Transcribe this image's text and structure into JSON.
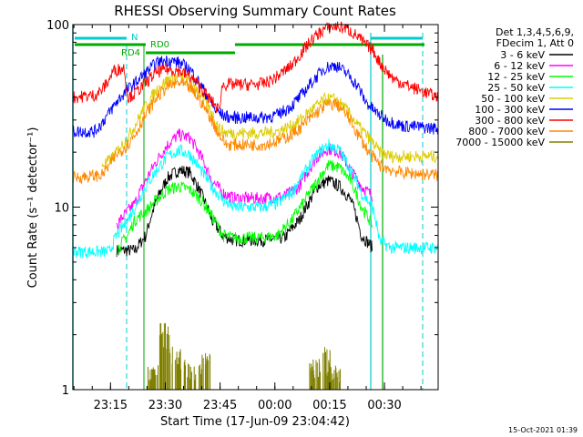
{
  "chart_data": {
    "type": "line",
    "title": "RHESSI Observing Summary Count Rates",
    "xlabel": "Start Time (17-Jun-09 23:04:42)",
    "ylabel": "Count Rate (s⁻¹ detector⁻¹)",
    "yscale": "log",
    "ylim": [
      1,
      100
    ],
    "xlim": [
      0,
      100
    ],
    "x_unit": "minutes after 23:04:42",
    "x_ticks": [
      {
        "t": 10.3,
        "label": "23:15"
      },
      {
        "t": 25.3,
        "label": "23:30"
      },
      {
        "t": 40.3,
        "label": "23:45"
      },
      {
        "t": 55.3,
        "label": "00:00"
      },
      {
        "t": 70.3,
        "label": "00:15"
      },
      {
        "t": 85.3,
        "label": "00:30"
      }
    ],
    "y_ticks": [
      {
        "v": 1,
        "label": "1"
      },
      {
        "v": 10,
        "label": "10"
      },
      {
        "v": 100,
        "label": "100"
      }
    ],
    "legend_header": [
      "Det 1,3,4,5,6,9,",
      "FDecim 1, Att 0"
    ],
    "legend_position": "right",
    "grid": false,
    "series": [
      {
        "name": "3 - 6 keV",
        "color": "#000000",
        "points": [
          [
            12,
            5.8
          ],
          [
            17,
            5.8
          ],
          [
            20,
            7
          ],
          [
            23,
            11
          ],
          [
            26,
            14.5
          ],
          [
            29,
            16
          ],
          [
            32,
            15.5
          ],
          [
            35,
            12
          ],
          [
            38,
            8.5
          ],
          [
            41,
            7
          ],
          [
            44,
            6.6
          ],
          [
            52,
            6.6
          ],
          [
            58,
            6.8
          ],
          [
            62,
            8.5
          ],
          [
            65,
            11
          ],
          [
            67,
            13
          ],
          [
            70,
            14
          ],
          [
            73,
            13
          ],
          [
            76,
            11
          ],
          [
            79,
            7
          ],
          [
            82,
            6
          ]
        ]
      },
      {
        "name": "6 - 12 keV",
        "color": "#ff00ff",
        "points": [
          [
            12,
            8
          ],
          [
            17,
            10.5
          ],
          [
            20,
            14
          ],
          [
            23,
            18
          ],
          [
            26,
            22
          ],
          [
            29,
            25
          ],
          [
            32,
            24
          ],
          [
            35,
            19
          ],
          [
            38,
            14
          ],
          [
            41,
            12
          ],
          [
            44,
            11.2
          ],
          [
            52,
            11.2
          ],
          [
            58,
            11.5
          ],
          [
            62,
            13
          ],
          [
            65,
            16.5
          ],
          [
            67,
            19
          ],
          [
            70,
            21
          ],
          [
            73,
            20
          ],
          [
            76,
            16
          ],
          [
            79,
            13
          ],
          [
            82,
            11.5
          ]
        ]
      },
      {
        "name": "12 - 25 keV",
        "color": "#00ff00",
        "points": [
          [
            12,
            5.8
          ],
          [
            15,
            7
          ],
          [
            17,
            8.5
          ],
          [
            20,
            9.5
          ],
          [
            23,
            11
          ],
          [
            26,
            12.5
          ],
          [
            29,
            13
          ],
          [
            32,
            12.5
          ],
          [
            35,
            11
          ],
          [
            38,
            9
          ],
          [
            41,
            7
          ],
          [
            44,
            6.8
          ],
          [
            52,
            6.8
          ],
          [
            56,
            7
          ],
          [
            60,
            8.5
          ],
          [
            63,
            10.5
          ],
          [
            66,
            13
          ],
          [
            68,
            15
          ],
          [
            70,
            17
          ],
          [
            73,
            16.5
          ],
          [
            76,
            14
          ],
          [
            79,
            10
          ],
          [
            82,
            8
          ]
        ]
      },
      {
        "name": "25 - 50 keV",
        "color": "#00ffff",
        "points": [
          [
            0,
            5.7
          ],
          [
            10,
            5.7
          ],
          [
            12,
            7
          ],
          [
            15,
            8.5
          ],
          [
            17,
            10
          ],
          [
            20,
            13
          ],
          [
            23,
            16
          ],
          [
            26,
            19
          ],
          [
            29,
            20.5
          ],
          [
            32,
            19.5
          ],
          [
            35,
            16
          ],
          [
            38,
            13
          ],
          [
            41,
            11
          ],
          [
            44,
            10
          ],
          [
            52,
            10
          ],
          [
            56,
            10.5
          ],
          [
            60,
            12
          ],
          [
            63,
            15
          ],
          [
            66,
            18.5
          ],
          [
            68,
            20.5
          ],
          [
            70,
            22
          ],
          [
            73,
            20.5
          ],
          [
            76,
            16
          ],
          [
            79,
            12
          ],
          [
            82,
            10
          ],
          [
            84,
            6.5
          ],
          [
            87,
            6
          ],
          [
            100,
            6
          ]
        ]
      },
      {
        "name": "50 - 100 keV",
        "color": "#ddcc00",
        "points": [
          [
            8,
            17
          ],
          [
            10,
            18
          ],
          [
            12,
            20
          ],
          [
            15,
            24
          ],
          [
            17,
            28
          ],
          [
            20,
            36
          ],
          [
            23,
            44
          ],
          [
            26,
            50
          ],
          [
            29,
            52
          ],
          [
            32,
            49
          ],
          [
            35,
            42
          ],
          [
            38,
            33
          ],
          [
            40,
            27
          ],
          [
            42,
            25.5
          ],
          [
            48,
            25.5
          ],
          [
            52,
            25.5
          ],
          [
            56,
            26
          ],
          [
            60,
            28
          ],
          [
            63,
            31
          ],
          [
            66,
            35
          ],
          [
            69,
            39
          ],
          [
            72,
            39
          ],
          [
            75,
            34
          ],
          [
            78,
            28
          ],
          [
            81,
            24
          ],
          [
            84,
            20
          ],
          [
            87,
            19
          ],
          [
            90,
            19
          ],
          [
            100,
            19
          ]
        ]
      },
      {
        "name": "100 - 300 keV",
        "color": "#0000ff",
        "points": [
          [
            0,
            26
          ],
          [
            6,
            26
          ],
          [
            8,
            29
          ],
          [
            10,
            33
          ],
          [
            13,
            40
          ],
          [
            16,
            46
          ],
          [
            18,
            50
          ],
          [
            21,
            57
          ],
          [
            23,
            62
          ],
          [
            26,
            64
          ],
          [
            29,
            62
          ],
          [
            32,
            57
          ],
          [
            34,
            50
          ],
          [
            37,
            40
          ],
          [
            39,
            34
          ],
          [
            41,
            32
          ],
          [
            43,
            31
          ],
          [
            48,
            31
          ],
          [
            52,
            31
          ],
          [
            56,
            32
          ],
          [
            60,
            36
          ],
          [
            63,
            42
          ],
          [
            66,
            50
          ],
          [
            69,
            58
          ],
          [
            72,
            60
          ],
          [
            75,
            54
          ],
          [
            78,
            46
          ],
          [
            80,
            38
          ],
          [
            83,
            33
          ],
          [
            86,
            30
          ],
          [
            90,
            28
          ],
          [
            100,
            27
          ]
        ]
      },
      {
        "name": "300 - 800 keV",
        "color": "#ff0000",
        "points": [
          [
            0,
            40
          ],
          [
            6,
            41
          ],
          [
            8,
            44
          ],
          [
            10,
            50
          ],
          [
            11,
            56
          ],
          [
            14,
            58
          ],
          [
            15,
            40
          ],
          [
            17,
            42
          ],
          [
            20,
            48
          ],
          [
            23,
            55
          ],
          [
            26,
            57
          ],
          [
            29,
            56
          ],
          [
            32,
            52
          ],
          [
            35,
            45
          ],
          [
            38,
            38
          ],
          [
            40,
            34
          ],
          [
            41,
            47
          ],
          [
            45,
            47
          ],
          [
            50,
            47
          ],
          [
            53,
            48
          ],
          [
            56,
            52
          ],
          [
            60,
            60
          ],
          [
            63,
            72
          ],
          [
            66,
            85
          ],
          [
            69,
            95
          ],
          [
            72,
            98
          ],
          [
            75,
            95
          ],
          [
            78,
            86
          ],
          [
            80,
            78
          ],
          [
            82,
            73
          ],
          [
            84,
            62
          ],
          [
            86,
            55
          ],
          [
            88,
            50
          ],
          [
            92,
            46
          ],
          [
            96,
            43
          ],
          [
            100,
            40
          ]
        ]
      },
      {
        "name": "800 - 7000 keV",
        "color": "#ff8800",
        "points": [
          [
            0,
            14.5
          ],
          [
            8,
            15
          ],
          [
            10,
            17
          ],
          [
            12,
            19.5
          ],
          [
            15,
            22
          ],
          [
            17,
            25
          ],
          [
            20,
            32
          ],
          [
            23,
            40
          ],
          [
            26,
            46
          ],
          [
            29,
            48
          ],
          [
            32,
            45
          ],
          [
            35,
            38
          ],
          [
            38,
            30
          ],
          [
            40,
            25
          ],
          [
            42,
            22
          ],
          [
            48,
            22
          ],
          [
            52,
            22
          ],
          [
            56,
            23
          ],
          [
            60,
            25
          ],
          [
            63,
            28
          ],
          [
            66,
            32
          ],
          [
            69,
            36
          ],
          [
            72,
            37
          ],
          [
            75,
            32
          ],
          [
            78,
            25
          ],
          [
            81,
            20
          ],
          [
            84,
            17
          ],
          [
            87,
            16
          ],
          [
            90,
            15.5
          ],
          [
            100,
            15
          ]
        ]
      },
      {
        "name": "7000 - 15000 keV",
        "color": "#808000",
        "points": [
          [
            22,
            1.3
          ],
          [
            25,
            2.1
          ],
          [
            28,
            1.6
          ],
          [
            32,
            1.4
          ],
          [
            36,
            1.5
          ],
          [
            66,
            1.4
          ],
          [
            69,
            1.6
          ],
          [
            72,
            1.3
          ]
        ]
      }
    ],
    "annotations": [
      {
        "label": "N",
        "color": "#00cccc"
      },
      {
        "label": "RD0",
        "color": "#00aa00"
      },
      {
        "label": "RD4",
        "color": "#00aa00"
      }
    ],
    "footer_timestamp": "15-Oct-2021 01:39"
  }
}
